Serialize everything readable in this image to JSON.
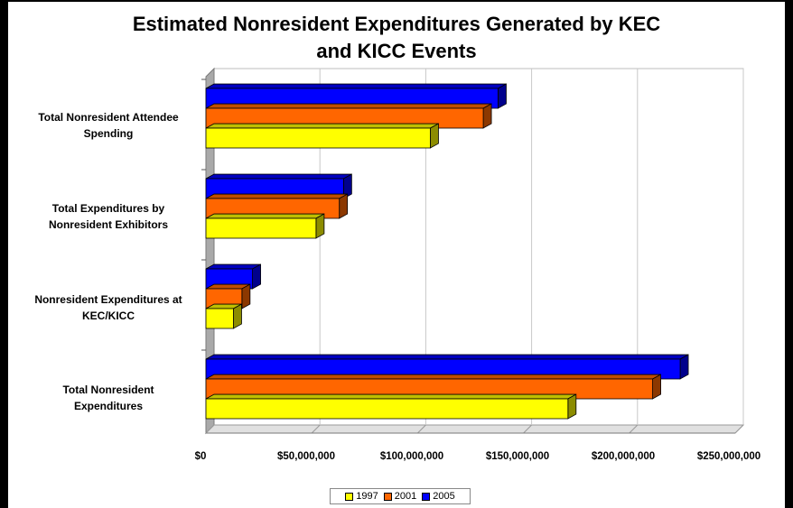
{
  "chart_data": {
    "type": "bar",
    "orientation": "horizontal",
    "title_lines": [
      "Estimated Nonresident Expenditures Generated by KEC",
      "and KICC Events"
    ],
    "categories": [
      [
        "Total Nonresident Attendee",
        "Spending"
      ],
      [
        "Total Expenditures by",
        "Nonresident Exhibitors"
      ],
      [
        "Nonresident Expenditures at",
        "KEC/KICC"
      ],
      [
        "Total Nonresident",
        "Expenditures"
      ]
    ],
    "series": [
      {
        "name": "1997",
        "color": "#ffff00",
        "values": [
          106000000,
          52000000,
          13000000,
          171000000
        ]
      },
      {
        "name": "2001",
        "color": "#ff6600",
        "values": [
          131000000,
          63000000,
          17000000,
          211000000
        ]
      },
      {
        "name": "2005",
        "color": "#0000ff",
        "values": [
          138000000,
          65000000,
          22000000,
          224000000
        ]
      }
    ],
    "xlim": [
      0,
      250000000
    ],
    "xticks": [
      "$0",
      "$50,000,000",
      "$100,000,000",
      "$150,000,000",
      "$200,000,000",
      "$250,000,000"
    ],
    "grid": true,
    "legend": "bottom",
    "style": "3d"
  }
}
